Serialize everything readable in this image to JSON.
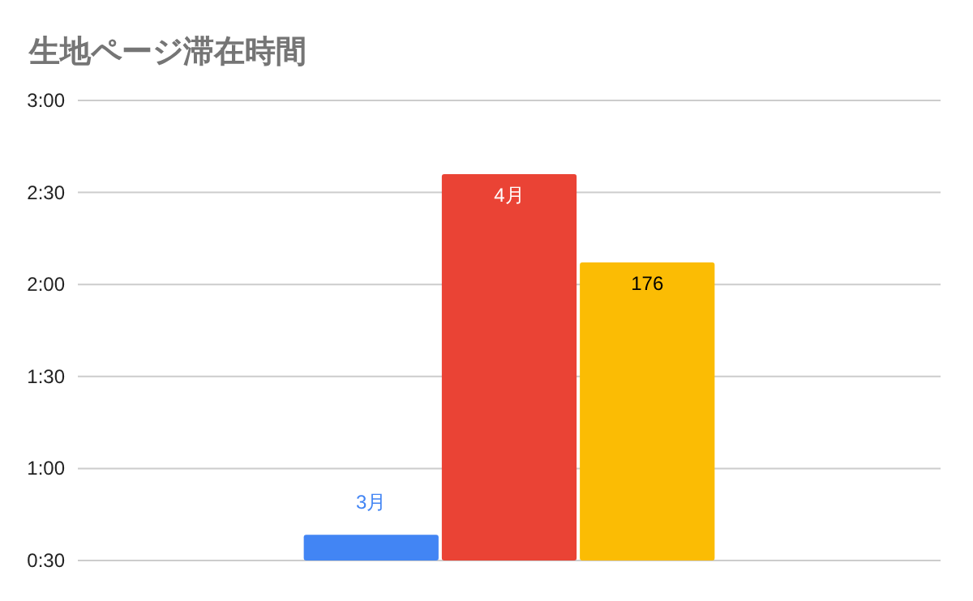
{
  "chart_data": {
    "type": "bar",
    "title": "生地ページ滞在時間",
    "categories": [
      null
    ],
    "series": [
      {
        "name": "3月",
        "color": "#4285f4",
        "values": [
          0.64
        ]
      },
      {
        "name": "4月",
        "color": "#ea4335",
        "values": [
          2.6
        ]
      },
      {
        "name": "176",
        "color": "#fbbc04",
        "values": [
          2.12
        ]
      }
    ],
    "ylim": [
      0.5,
      3
    ],
    "yticks": [
      {
        "value": 0.5,
        "label": "0:30"
      },
      {
        "value": 1,
        "label": "1:00"
      },
      {
        "value": 1.5,
        "label": "1:30"
      },
      {
        "value": 2,
        "label": "2:00"
      },
      {
        "value": 2.5,
        "label": "2:30"
      },
      {
        "value": 3,
        "label": "3:00"
      }
    ],
    "grid": "y",
    "tick_labels": "y"
  }
}
